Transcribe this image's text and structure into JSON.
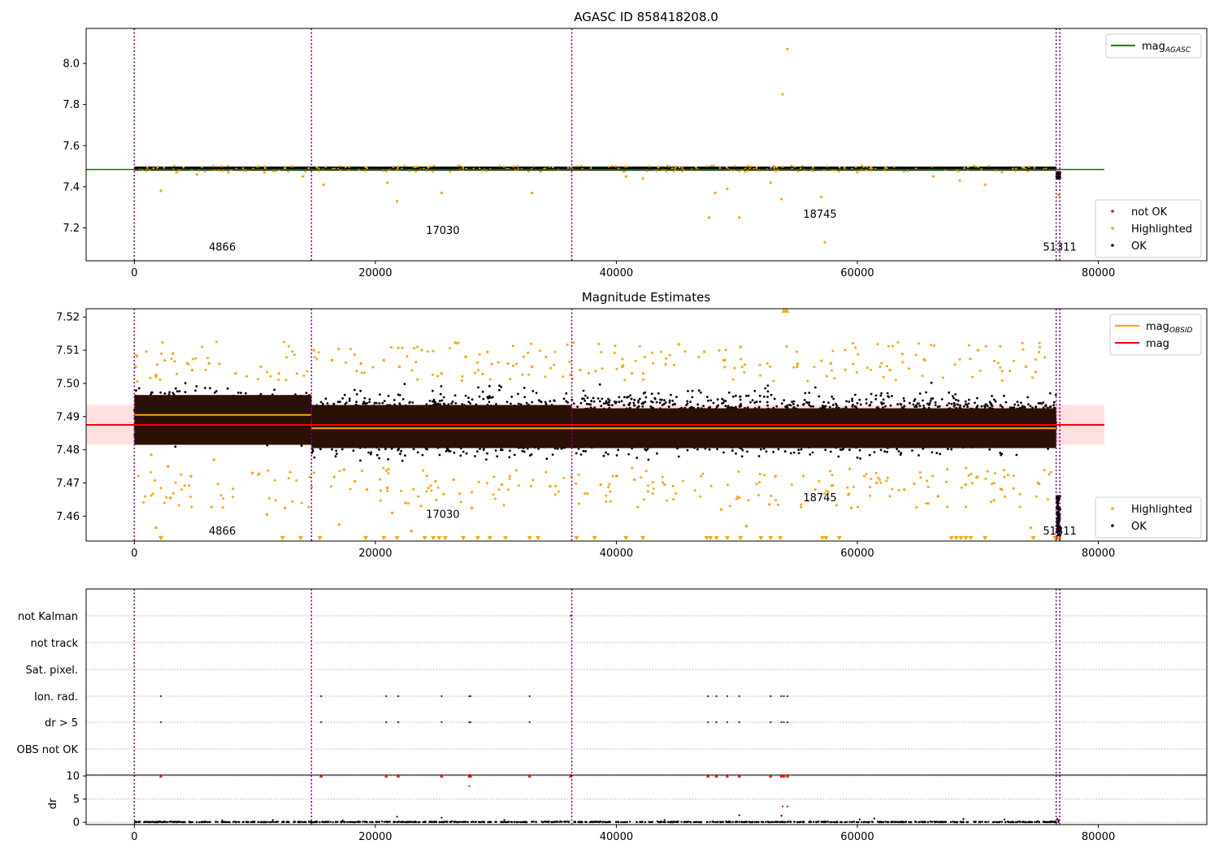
{
  "chart_data": [
    {
      "type": "scatter",
      "title": "AGASC ID 858418208.0",
      "xlim": [
        -4000,
        89000
      ],
      "ylim": [
        7.04,
        8.17
      ],
      "xticks": [
        0,
        20000,
        40000,
        60000,
        80000
      ],
      "xtick_labels": [
        "0",
        "20000",
        "40000",
        "60000",
        "80000"
      ],
      "yticks": [
        7.2,
        7.4,
        7.6,
        7.8,
        8.0
      ],
      "ytick_labels": [
        "7.2",
        "7.4",
        "7.6",
        "7.8",
        "8.0"
      ],
      "vlines": [
        0,
        14700,
        36300,
        76500,
        76800
      ],
      "obsid_labels": [
        {
          "x": 7300,
          "y": 7.09,
          "text": "4866"
        },
        {
          "x": 25600,
          "y": 7.17,
          "text": "17030"
        },
        {
          "x": 56900,
          "y": 7.25,
          "text": "18745"
        },
        {
          "x": 76800,
          "y": 7.09,
          "text": "51311"
        }
      ],
      "lines": [
        {
          "name": "mag",
          "sub": "AGASC",
          "color": "#008000",
          "x": [
            -4000,
            80500
          ],
          "y": [
            7.484,
            7.484
          ]
        }
      ],
      "bands": [
        {
          "x0": 0,
          "x1": 76500,
          "y0": 7.478,
          "y1": 7.498,
          "color": "#000000"
        }
      ],
      "series": [
        {
          "name": "not OK",
          "color": "#ff0000",
          "points": []
        },
        {
          "name": "Highlighted",
          "color": "#ffa500",
          "points": [
            [
              2200,
              7.38
            ],
            [
              3500,
              7.47
            ],
            [
              5200,
              7.46
            ],
            [
              7800,
              7.47
            ],
            [
              10800,
              7.47
            ],
            [
              12500,
              7.49
            ],
            [
              14000,
              7.45
            ],
            [
              15700,
              7.41
            ],
            [
              21000,
              7.42
            ],
            [
              21800,
              7.33
            ],
            [
              25500,
              7.37
            ],
            [
              33000,
              7.37
            ],
            [
              40800,
              7.45
            ],
            [
              42200,
              7.44
            ],
            [
              47700,
              7.25
            ],
            [
              48200,
              7.37
            ],
            [
              49200,
              7.39
            ],
            [
              50200,
              7.25
            ],
            [
              52800,
              7.42
            ],
            [
              53700,
              7.34
            ],
            [
              53800,
              7.85
            ],
            [
              54200,
              8.07
            ],
            [
              57000,
              7.35
            ],
            [
              57300,
              7.13
            ],
            [
              60000,
              7.47
            ],
            [
              66300,
              7.45
            ],
            [
              68500,
              7.43
            ],
            [
              70600,
              7.41
            ],
            [
              72000,
              7.47
            ],
            [
              76700,
              7.36
            ]
          ]
        },
        {
          "name": "OK",
          "color": "#000000",
          "points": []
        }
      ],
      "legends": [
        {
          "loc": "upper-right",
          "entries": [
            {
              "name": "mag",
              "sub": "AGASC",
              "kind": "line",
              "color": "#008000"
            }
          ]
        },
        {
          "loc": "lower-right",
          "entries": [
            {
              "name": "not OK",
              "kind": "marker",
              "color": "#ff0000"
            },
            {
              "name": "Highlighted",
              "kind": "marker",
              "color": "#ffa500"
            },
            {
              "name": "OK",
              "kind": "marker",
              "color": "#000000"
            }
          ]
        }
      ]
    },
    {
      "type": "scatter",
      "title": "Magnitude Estimates",
      "xlim": [
        -4000,
        89000
      ],
      "ylim": [
        7.4525,
        7.5225
      ],
      "xticks": [
        0,
        20000,
        40000,
        60000,
        80000
      ],
      "xtick_labels": [
        "0",
        "20000",
        "40000",
        "60000",
        "80000"
      ],
      "yticks": [
        7.46,
        7.47,
        7.48,
        7.49,
        7.5,
        7.51,
        7.52
      ],
      "ytick_labels": [
        "7.46",
        "7.47",
        "7.48",
        "7.49",
        "7.50",
        "7.51",
        "7.52"
      ],
      "vlines": [
        0,
        14700,
        36300,
        76500,
        76800
      ],
      "obsid_labels": [
        {
          "x": 7300,
          "y": 7.4545,
          "text": "4866"
        },
        {
          "x": 25600,
          "y": 7.4595,
          "text": "17030"
        },
        {
          "x": 56900,
          "y": 7.4645,
          "text": "18745"
        },
        {
          "x": 76800,
          "y": 7.4545,
          "text": "51311"
        }
      ],
      "mag_band": {
        "y0": 7.4815,
        "y1": 7.4935,
        "x0": -4000,
        "x1": 80500,
        "color": "#ff0000"
      },
      "dark_bands": [
        {
          "x0": 0,
          "x1": 14700,
          "y0": 7.4815,
          "y1": 7.4965
        },
        {
          "x0": 14700,
          "x1": 36300,
          "y0": 7.4805,
          "y1": 7.4935
        },
        {
          "x0": 36300,
          "x1": 76500,
          "y0": 7.4805,
          "y1": 7.4925
        }
      ],
      "ok_bands": [
        {
          "x0": 0,
          "x1": 14700,
          "y0": 7.4775,
          "y1": 7.5025
        },
        {
          "x0": 14700,
          "x1": 36300,
          "y0": 7.4725,
          "y1": 7.5025
        },
        {
          "x0": 36300,
          "x1": 76500,
          "y0": 7.4735,
          "y1": 7.5025
        }
      ],
      "lines": [
        {
          "name": "mag",
          "sub": "OBSID",
          "color": "#ffa500",
          "segments": [
            [
              0,
              14700,
              7.4905
            ],
            [
              14700,
              36300,
              7.4865
            ],
            [
              36300,
              76500,
              7.4865
            ]
          ]
        },
        {
          "name": "mag",
          "sub": "",
          "color": "#ff0000",
          "segments": [
            [
              -4000,
              80500,
              7.4875
            ]
          ]
        }
      ],
      "series": [
        {
          "name": "Highlighted",
          "color": "#ffa500",
          "points": [
            [
              100,
              7.505
            ],
            [
              1800,
              7.5025
            ],
            [
              3200,
              7.509
            ],
            [
              4800,
              7.504
            ],
            [
              6200,
              7.506
            ],
            [
              8400,
              7.503
            ],
            [
              10500,
              7.505
            ],
            [
              12000,
              7.503
            ],
            [
              14900,
              7.51
            ],
            [
              16400,
              7.507
            ],
            [
              18800,
              7.506
            ],
            [
              20700,
              7.507
            ],
            [
              22000,
              7.505
            ],
            [
              25500,
              7.503
            ],
            [
              27500,
              7.508
            ],
            [
              29300,
              7.5095
            ],
            [
              31000,
              7.506
            ],
            [
              33000,
              7.505
            ],
            [
              37000,
              7.504
            ],
            [
              40500,
              7.505
            ],
            [
              41300,
              7.503
            ],
            [
              47300,
              7.5095
            ],
            [
              49000,
              7.507
            ],
            [
              50300,
              7.511
            ],
            [
              55000,
              7.505
            ],
            [
              57800,
              7.506
            ],
            [
              62700,
              7.504
            ],
            [
              65600,
              7.507
            ],
            [
              70000,
              7.51
            ],
            [
              74000,
              7.505
            ],
            [
              1400,
              7.4785
            ],
            [
              2800,
              7.475
            ],
            [
              4700,
              7.472
            ],
            [
              6600,
              7.477
            ],
            [
              9800,
              7.473
            ],
            [
              3000,
              7.4655
            ],
            [
              11000,
              7.4605
            ],
            [
              12500,
              7.4625
            ],
            [
              17400,
              7.474
            ],
            [
              18300,
              7.4705
            ],
            [
              19300,
              7.468
            ],
            [
              21000,
              7.4685
            ],
            [
              21400,
              7.461
            ],
            [
              22500,
              7.464
            ],
            [
              25000,
              7.4705
            ],
            [
              26500,
              7.471
            ],
            [
              28000,
              7.4625
            ],
            [
              30500,
              7.4695
            ],
            [
              34500,
              7.469
            ],
            [
              38700,
              7.4695
            ],
            [
              41500,
              7.471
            ],
            [
              44000,
              7.4695
            ],
            [
              48700,
              7.462
            ],
            [
              50200,
              7.4655
            ],
            [
              52700,
              7.4635
            ],
            [
              53200,
              7.472
            ],
            [
              56500,
              7.468
            ],
            [
              59500,
              7.4625
            ],
            [
              61600,
              7.47
            ],
            [
              63900,
              7.468
            ],
            [
              66700,
              7.466
            ],
            [
              69000,
              7.4695
            ],
            [
              72000,
              7.468
            ],
            [
              75000,
              7.47
            ],
            [
              74400,
              7.4565
            ],
            [
              1800,
              7.4565
            ],
            [
              17000,
              7.4575
            ],
            [
              23000,
              7.4555
            ],
            [
              50800,
              7.457
            ],
            [
              53900,
              7.5225
            ],
            [
              54100,
              7.5225
            ]
          ]
        },
        {
          "name": "OK",
          "color": "#000000",
          "points": [
            [
              76650,
              7.4655
            ],
            [
              76700,
              7.462
            ],
            [
              76600,
              7.459
            ],
            [
              76750,
              7.456
            ],
            [
              76650,
              7.4535
            ],
            [
              76700,
              7.4545
            ]
          ]
        }
      ],
      "clipped_low": [
        2200,
        12300,
        13800,
        15400,
        19200,
        20700,
        21800,
        24100,
        24800,
        25300,
        25800,
        27300,
        28500,
        29500,
        30800,
        32800,
        33500,
        36700,
        38200,
        40800,
        42200,
        47500,
        47800,
        48300,
        49200,
        50300,
        52000,
        52800,
        53600,
        57100,
        57400,
        58500,
        67800,
        68200,
        68600,
        69000,
        69400,
        70600,
        74600,
        76400,
        76700
      ],
      "legends": [
        {
          "loc": "upper-right",
          "entries": [
            {
              "name": "mag",
              "sub": "OBSID",
              "kind": "line",
              "color": "#ffa500"
            },
            {
              "name": "mag",
              "sub": "",
              "kind": "line",
              "color": "#ff0000"
            }
          ]
        },
        {
          "loc": "lower-right",
          "entries": [
            {
              "name": "Highlighted",
              "kind": "marker",
              "color": "#ffa500"
            },
            {
              "name": "OK",
              "kind": "marker",
              "color": "#000000"
            }
          ]
        }
      ]
    },
    {
      "type": "scatter",
      "title": "",
      "xlim": [
        -4000,
        89000
      ],
      "xticks": [
        0,
        20000,
        40000,
        60000,
        80000
      ],
      "xtick_labels": [
        "0",
        "20000",
        "40000",
        "60000",
        "80000"
      ],
      "vlines": [
        0,
        14700,
        36300,
        76500,
        76800
      ],
      "flag_rows": [
        "not Kalman",
        "not track",
        "Sat. pixel.",
        "Ion. rad.",
        "dr > 5",
        "OBS not OK"
      ],
      "flag_points": {
        "not Kalman": [
          36200
        ],
        "not track": [],
        "Sat. pixel.": [],
        "Ion. rad.": [
          2200,
          15500,
          20900,
          21900,
          25500,
          27800,
          27900,
          32800,
          47600,
          48300,
          49200,
          50200,
          52800,
          53700,
          53900,
          54200
        ],
        "dr > 5": [
          2200,
          15500,
          20900,
          21900,
          25500,
          27800,
          27900,
          32800,
          47600,
          48300,
          49200,
          50200,
          52800,
          53700,
          53900,
          54200
        ],
        "OBS not OK": []
      },
      "dr": {
        "ylabel": "dr",
        "ylim": [
          -0.5,
          10.2
        ],
        "yticks": [
          0,
          5,
          10
        ],
        "ytick_labels": [
          "0",
          "5",
          "10"
        ],
        "capped_at_10": [
          2200,
          15500,
          20900,
          21900,
          25500,
          27800,
          27900,
          32800,
          36200,
          47600,
          48300,
          49200,
          50200,
          52800,
          53700,
          53900,
          54200
        ],
        "points": [
          [
            27800,
            7.8
          ],
          [
            53800,
            3.4
          ],
          [
            54200,
            3.4
          ],
          [
            21800,
            1.2
          ],
          [
            25500,
            1.0
          ],
          [
            50200,
            1.5
          ],
          [
            53700,
            1.4
          ],
          [
            61400,
            0.8
          ],
          [
            68800,
            0.7
          ],
          [
            72200,
            0.6
          ],
          [
            11500,
            0.5
          ],
          [
            44000,
            0.5
          ],
          [
            7300,
            0.4
          ],
          [
            17300,
            0.4
          ],
          [
            30700,
            0.5
          ],
          [
            60200,
            0.6
          ],
          [
            76600,
            0.7
          ],
          [
            76700,
            0.4
          ]
        ]
      }
    }
  ]
}
